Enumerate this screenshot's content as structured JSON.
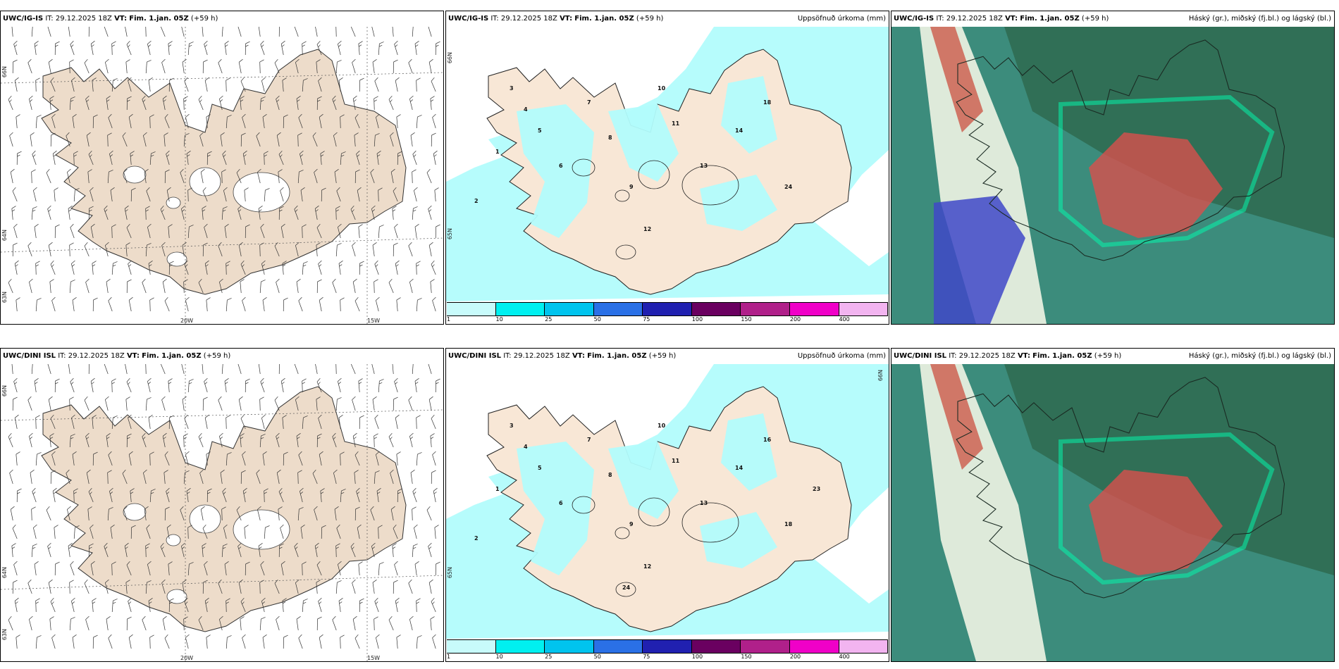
{
  "panels": [
    {
      "id": "p1",
      "model": "UWC/IG-IS",
      "it_label": "IT:",
      "it": "29.12.2025 18Z",
      "vt_label": "VT:",
      "vt": "Fim. 1.jan. 05Z",
      "lead": "(+59 h)",
      "right_title": "",
      "kind": "wind"
    },
    {
      "id": "p2",
      "model": "UWC/IG-IS",
      "it_label": "IT:",
      "it": "29.12.2025 18Z",
      "vt_label": "VT:",
      "vt": "Fim. 1.jan. 05Z",
      "lead": "(+59 h)",
      "right_title": "Uppsöfnuð úrkoma (mm)",
      "kind": "precip"
    },
    {
      "id": "p3",
      "model": "UWC/IG-IS",
      "it_label": "IT:",
      "it": "29.12.2025 18Z",
      "vt_label": "VT:",
      "vt": "Fim. 1.jan. 05Z",
      "lead": "(+59 h)",
      "right_title": "Háský (gr.), miðský (fj.bl.) og lágský (bl.)",
      "kind": "cloud"
    },
    {
      "id": "p4",
      "model": "UWC/DINI ISL",
      "it_label": "IT:",
      "it": "29.12.2025 18Z",
      "vt_label": "VT:",
      "vt": "Fim. 1.jan. 05Z",
      "lead": "(+59 h)",
      "right_title": "",
      "kind": "wind"
    },
    {
      "id": "p5",
      "model": "UWC/DINI ISL",
      "it_label": "IT:",
      "it": "29.12.2025 18Z",
      "vt_label": "VT:",
      "vt": "Fim. 1.jan. 05Z",
      "lead": "(+59 h)",
      "right_title": "Uppsöfnuð úrkoma (mm)",
      "kind": "precip"
    },
    {
      "id": "p6",
      "model": "UWC/DINI ISL",
      "it_label": "IT:",
      "it": "29.12.2025 18Z",
      "vt_label": "VT:",
      "vt": "Fim. 1.jan. 05Z",
      "lead": "(+59 h)",
      "right_title": "Háský (gr.), miðský (fj.bl.) og lágský (bl.)",
      "kind": "cloud"
    }
  ],
  "axes": {
    "lon_20": "20W",
    "lon_15": "15W",
    "lat_66": "66N",
    "lat_65": "65N",
    "lat_64": "64N",
    "lat_63": "63N"
  },
  "legend": {
    "colors": [
      "#c8fbfb",
      "#00f0f0",
      "#00c4ee",
      "#2a70e6",
      "#2020b0",
      "#6a0060",
      "#b0208a",
      "#f000c8",
      "#f2b4f0"
    ],
    "ticks": [
      "1",
      "10",
      "25",
      "50",
      "75",
      "100",
      "150",
      "200",
      "400"
    ]
  },
  "precip_labels_top": [
    "1",
    "2",
    "3",
    "4",
    "5",
    "6",
    "7",
    "8",
    "9",
    "10",
    "11",
    "12",
    "13",
    "14",
    "18",
    "24"
  ],
  "precip_labels_bottom": [
    "1",
    "2",
    "3",
    "4",
    "5",
    "6",
    "7",
    "8",
    "9",
    "10",
    "11",
    "12",
    "13",
    "14",
    "16",
    "18",
    "23",
    "24"
  ],
  "colors": {
    "land": "#f2dccc",
    "sea_precip": "#b2fcfc",
    "cloud_base": "#3c8c7c",
    "cloud_dark": "#2e6a50",
    "cloud_red": "#d8504c",
    "cloud_blue": "#4048c8"
  }
}
